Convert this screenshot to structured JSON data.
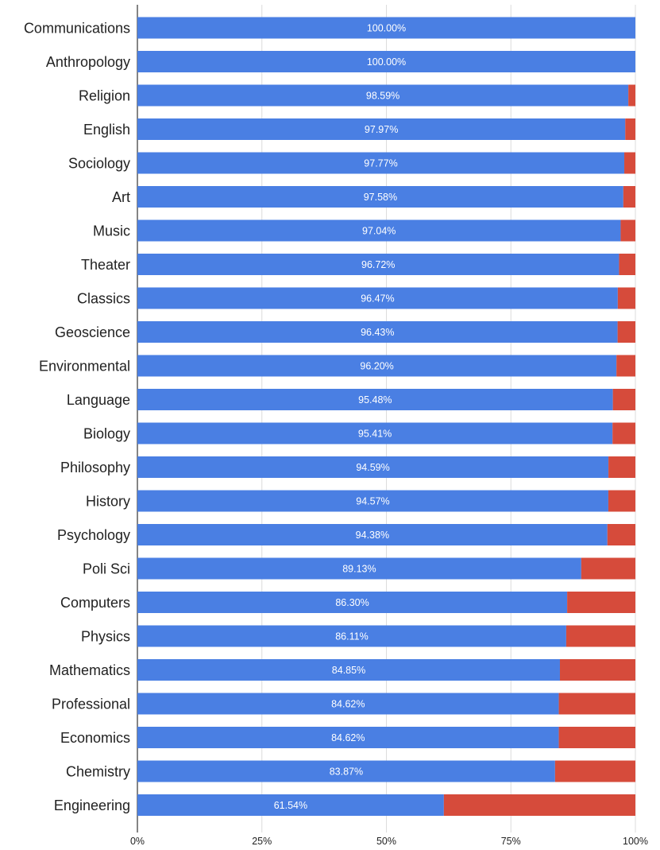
{
  "chart_data": {
    "type": "bar",
    "orientation": "horizontal",
    "stacked": true,
    "stack_mode": "percent",
    "categories": [
      "Communications",
      "Anthropology",
      "Religion",
      "English",
      "Sociology",
      "Art",
      "Music",
      "Theater",
      "Classics",
      "Geoscience",
      "Environmental",
      "Language",
      "Biology",
      "Philosophy",
      "History",
      "Psychology",
      "Poli Sci",
      "Computers",
      "Physics",
      "Mathematics",
      "Professional",
      "Economics",
      "Chemistry",
      "Engineering"
    ],
    "series": [
      {
        "color": "#4a7fe3",
        "values": [
          100.0,
          100.0,
          98.59,
          97.97,
          97.77,
          97.58,
          97.04,
          96.72,
          96.47,
          96.43,
          96.2,
          95.48,
          95.41,
          94.59,
          94.57,
          94.38,
          89.13,
          86.3,
          86.11,
          84.85,
          84.62,
          84.62,
          83.87,
          61.54
        ],
        "data_labels": [
          "100.00%",
          "100.00%",
          "98.59%",
          "97.97%",
          "97.77%",
          "97.58%",
          "97.04%",
          "96.72%",
          "96.47%",
          "96.43%",
          "96.20%",
          "95.48%",
          "95.41%",
          "94.59%",
          "94.57%",
          "94.38%",
          "89.13%",
          "86.30%",
          "86.11%",
          "84.85%",
          "84.62%",
          "84.62%",
          "83.87%",
          "61.54%"
        ]
      },
      {
        "color": "#d64b3b",
        "values": [
          0.0,
          0.0,
          1.41,
          2.03,
          2.23,
          2.42,
          2.96,
          3.28,
          3.53,
          3.57,
          3.8,
          4.52,
          4.59,
          5.41,
          5.43,
          5.62,
          10.87,
          13.7,
          13.89,
          15.15,
          15.38,
          15.38,
          16.13,
          38.46
        ]
      }
    ],
    "x_ticks": [
      0,
      25,
      50,
      75,
      100
    ],
    "x_tick_labels": [
      "0%",
      "25%",
      "50%",
      "75%",
      "100%"
    ],
    "xlim": [
      0,
      100
    ],
    "grid": "vertical",
    "legend": "none",
    "title": "",
    "xlabel": "",
    "ylabel": ""
  }
}
